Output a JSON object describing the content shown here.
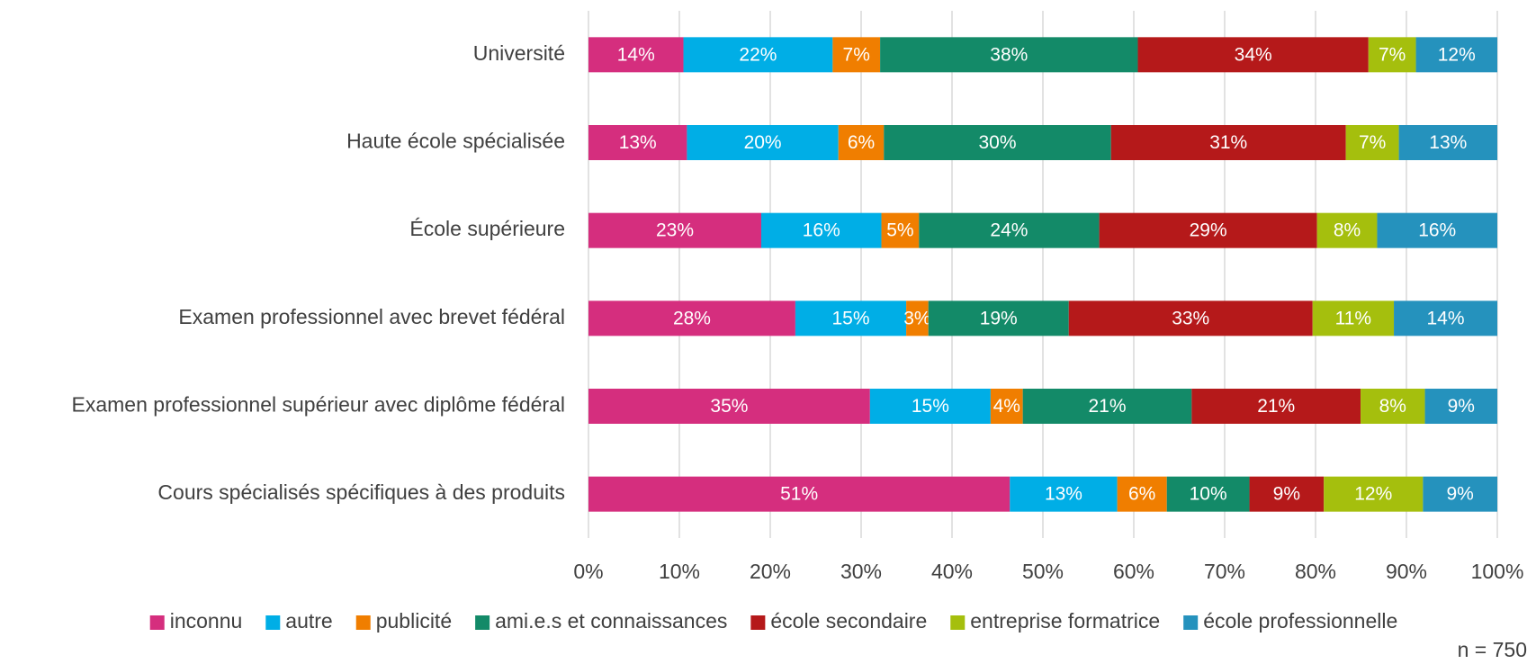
{
  "chart_data": {
    "type": "bar",
    "orientation": "horizontal",
    "stacked": "percent",
    "grid": true,
    "legend": "bottom",
    "categories": [
      "Université",
      "Haute école spécialisée",
      "École supérieure",
      "Examen professionnel avec brevet fédéral",
      "Examen professionnel supérieur avec diplôme fédéral",
      "Cours spécialisés spécifiques à des produits"
    ],
    "series": [
      {
        "name": "inconnu",
        "color": "#d52e7e",
        "values": [
          14,
          13,
          23,
          28,
          35,
          51
        ],
        "value_labels": [
          "14%",
          "13%",
          "23%",
          "28%",
          "35%",
          "51%"
        ]
      },
      {
        "name": "autre",
        "color": "#00aee6",
        "values": [
          22,
          20,
          16,
          15,
          15,
          13
        ],
        "value_labels": [
          "22%",
          "20%",
          "16%",
          "15%",
          "15%",
          "13%"
        ]
      },
      {
        "name": "publicité",
        "color": "#f07e00",
        "values": [
          7,
          6,
          5,
          3,
          4,
          6
        ],
        "value_labels": [
          "7%",
          "6%",
          "5%",
          "3%",
          "4%",
          "6%"
        ]
      },
      {
        "name": "ami.e.s et connaissances",
        "color": "#138a68",
        "values": [
          38,
          30,
          24,
          19,
          21,
          10
        ],
        "value_labels": [
          "38%",
          "30%",
          "24%",
          "19%",
          "21%",
          "10%"
        ]
      },
      {
        "name": "école secondaire",
        "color": "#b5191a",
        "values": [
          34,
          31,
          29,
          33,
          21,
          9
        ],
        "value_labels": [
          "34%",
          "31%",
          "29%",
          "33%",
          "21%",
          "9%"
        ]
      },
      {
        "name": "entreprise formatrice",
        "color": "#a5bf0d",
        "values": [
          7,
          7,
          8,
          11,
          8,
          12
        ],
        "value_labels": [
          "7%",
          "7%",
          "8%",
          "11%",
          "8%",
          "12%"
        ]
      },
      {
        "name": "école professionnelle",
        "color": "#2592bd",
        "values": [
          12,
          13,
          16,
          14,
          9,
          9
        ],
        "value_labels": [
          "12%",
          "13%",
          "16%",
          "14%",
          "9%",
          "9%"
        ]
      }
    ],
    "xlim": [
      0,
      100
    ],
    "xticks": [
      {
        "value": 0,
        "label": "0%"
      },
      {
        "value": 10,
        "label": "10%"
      },
      {
        "value": 20,
        "label": "20%"
      },
      {
        "value": 30,
        "label": "30%"
      },
      {
        "value": 40,
        "label": "40%"
      },
      {
        "value": 50,
        "label": "50%"
      },
      {
        "value": 60,
        "label": "60%"
      },
      {
        "value": 70,
        "label": "70%"
      },
      {
        "value": 80,
        "label": "80%"
      },
      {
        "value": 90,
        "label": "90%"
      },
      {
        "value": 100,
        "label": "100%"
      }
    ],
    "note": "n = 750"
  }
}
